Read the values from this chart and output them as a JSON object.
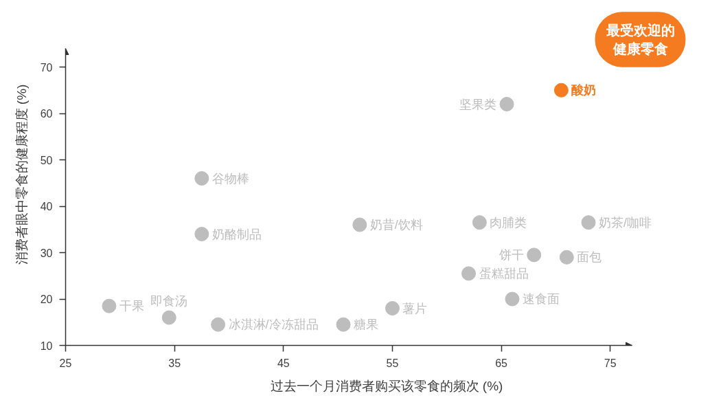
{
  "chart_data": {
    "type": "scatter",
    "xlabel": "过去一个月消费者购买该零食的频次 (%)",
    "ylabel": "消费者眼中零食的健康程度 (%)",
    "xlim": [
      25,
      77
    ],
    "ylim": [
      10,
      74
    ],
    "xticks": [
      25,
      35,
      45,
      55,
      65,
      75
    ],
    "yticks": [
      10,
      20,
      30,
      40,
      50,
      60,
      70
    ],
    "grid": false,
    "marker": "circle",
    "annotations": [
      "最受欢迎的健康零食"
    ],
    "series": [
      {
        "name": "酸奶",
        "color": "#f47b20",
        "x": [
          70.5
        ],
        "values": [
          65
        ]
      },
      {
        "name": "坚果类",
        "color": "#bdbdbd",
        "x": [
          65.5
        ],
        "values": [
          62
        ]
      },
      {
        "name": "谷物棒",
        "color": "#bdbdbd",
        "x": [
          37.5
        ],
        "values": [
          46
        ]
      },
      {
        "name": "奶酪制品",
        "color": "#bdbdbd",
        "x": [
          37.5
        ],
        "values": [
          34
        ]
      },
      {
        "name": "奶昔/饮料",
        "color": "#bdbdbd",
        "x": [
          52
        ],
        "values": [
          36
        ]
      },
      {
        "name": "肉脯类",
        "color": "#bdbdbd",
        "x": [
          63
        ],
        "values": [
          36.5
        ]
      },
      {
        "name": "奶茶/咖啡",
        "color": "#bdbdbd",
        "x": [
          73
        ],
        "values": [
          36.5
        ]
      },
      {
        "name": "饼干",
        "color": "#bdbdbd",
        "x": [
          68
        ],
        "values": [
          29.5
        ]
      },
      {
        "name": "面包",
        "color": "#bdbdbd",
        "x": [
          71
        ],
        "values": [
          29
        ]
      },
      {
        "name": "蛋糕甜品",
        "color": "#bdbdbd",
        "x": [
          62
        ],
        "values": [
          25.5
        ]
      },
      {
        "name": "速食面",
        "color": "#bdbdbd",
        "x": [
          66
        ],
        "values": [
          20
        ]
      },
      {
        "name": "干果",
        "color": "#bdbdbd",
        "x": [
          29
        ],
        "values": [
          18.5
        ]
      },
      {
        "name": "即食汤",
        "color": "#bdbdbd",
        "x": [
          34.5
        ],
        "values": [
          16
        ]
      },
      {
        "name": "冰淇淋/冷冻甜品",
        "color": "#bdbdbd",
        "x": [
          39
        ],
        "values": [
          14.5
        ]
      },
      {
        "name": "糖果",
        "color": "#bdbdbd",
        "x": [
          50.5
        ],
        "values": [
          14.5
        ]
      },
      {
        "name": "薯片",
        "color": "#bdbdbd",
        "x": [
          55
        ],
        "values": [
          18
        ]
      }
    ]
  }
}
